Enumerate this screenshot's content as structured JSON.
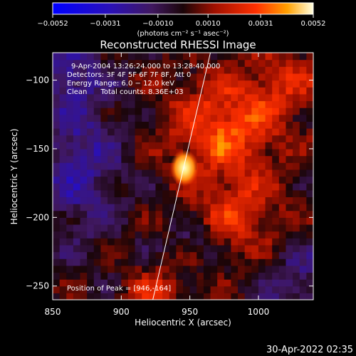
{
  "chart_data": {
    "type": "heatmap",
    "title": "Reconstructed RHESSI Image",
    "xlabel": "Heliocentric X (arcsec)",
    "ylabel": "Heliocentric Y (arcsec)",
    "xlim": [
      850,
      1040
    ],
    "ylim": [
      -260,
      -80
    ],
    "x_ticks": [
      850,
      900,
      950,
      1000
    ],
    "x_tick_labels": [
      "850",
      "900",
      "950",
      "1000"
    ],
    "y_ticks": [
      -100,
      -150,
      -200,
      -250
    ],
    "y_tick_labels": [
      "−100",
      "−150",
      "−200",
      "−250"
    ],
    "colorbar": {
      "min": -0.0052,
      "max": 0.0052,
      "ticks": [
        -0.0052,
        -0.0031,
        -0.001,
        0.001,
        0.0031,
        0.0052
      ],
      "tick_labels": [
        "−0.0052",
        "−0.0031",
        "−0.0010",
        "0.0010",
        "0.0031",
        "0.0052"
      ],
      "units_label": "(photons cm⁻² s⁻¹ asec⁻²)"
    },
    "peak": {
      "x": 946,
      "y": -164,
      "value": 0.0052
    },
    "annotations": [
      "9-Apr-2004 13:26:24.000 to 13:28:40.000",
      "Detectors: 3F 4F 5F 6F 7F 8F, Att 0",
      "Energy Range: 6.0 − 12.0 keV",
      "Clean      Total counts: 8.36E+03"
    ],
    "peak_label": "Position of Peak = [946,-164]",
    "limb_line": [
      [
        923,
        -260
      ],
      [
        965,
        -80
      ]
    ],
    "colors": {
      "background": "#000000",
      "limb": "#ffffff"
    }
  },
  "footer": {
    "timestamp": "30-Apr-2022 02:35"
  }
}
